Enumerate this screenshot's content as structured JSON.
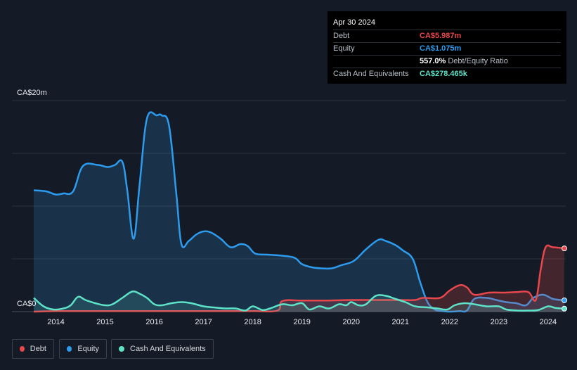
{
  "tooltip": {
    "date": "Apr 30 2024",
    "rows": [
      {
        "label": "Debt",
        "value": "CA$5.987m",
        "color": "#e8474c"
      },
      {
        "label": "Equity",
        "value": "CA$1.075m",
        "color": "#2d9bee"
      },
      {
        "label": "",
        "value": "557.0%",
        "note": "Debt/Equity Ratio",
        "color": "#ffffff"
      },
      {
        "label": "Cash And Equivalents",
        "value": "CA$278.465k",
        "color": "#5ee2c8"
      }
    ]
  },
  "legend": [
    {
      "label": "Debt",
      "color": "#e8474c"
    },
    {
      "label": "Equity",
      "color": "#2d9bee"
    },
    {
      "label": "Cash And Equivalents",
      "color": "#5ee2c8"
    }
  ],
  "chart_data": {
    "type": "area",
    "y_axis_labels": [
      "CA$20m",
      "CA$0"
    ],
    "ylim": [
      0,
      20
    ],
    "y_unit": "CA$m",
    "x_tick_labels": [
      "2014",
      "2015",
      "2016",
      "2017",
      "2018",
      "2019",
      "2020",
      "2021",
      "2022",
      "2023",
      "2024"
    ],
    "xlim": [
      2013.55,
      2024.33
    ],
    "grid": true,
    "legend_position": "bottom-left",
    "series": [
      {
        "name": "Equity",
        "color": "#2d9bee",
        "points": [
          [
            2013.55,
            11.5
          ],
          [
            2013.8,
            11.4
          ],
          [
            2014.0,
            11.1
          ],
          [
            2014.15,
            11.2
          ],
          [
            2014.35,
            11.4
          ],
          [
            2014.55,
            13.8
          ],
          [
            2014.85,
            13.9
          ],
          [
            2015.05,
            13.7
          ],
          [
            2015.2,
            13.9
          ],
          [
            2015.35,
            14.2
          ],
          [
            2015.45,
            11.5
          ],
          [
            2015.58,
            6.9
          ],
          [
            2015.7,
            12.0
          ],
          [
            2015.85,
            18.3
          ],
          [
            2016.05,
            18.6
          ],
          [
            2016.15,
            18.6
          ],
          [
            2016.3,
            17.6
          ],
          [
            2016.45,
            11.0
          ],
          [
            2016.55,
            6.4
          ],
          [
            2016.7,
            6.7
          ],
          [
            2016.85,
            7.3
          ],
          [
            2017.0,
            7.6
          ],
          [
            2017.15,
            7.5
          ],
          [
            2017.35,
            6.9
          ],
          [
            2017.55,
            6.1
          ],
          [
            2017.75,
            6.4
          ],
          [
            2017.9,
            6.2
          ],
          [
            2018.05,
            5.5
          ],
          [
            2018.3,
            5.4
          ],
          [
            2018.6,
            5.3
          ],
          [
            2018.85,
            5.1
          ],
          [
            2019.0,
            4.5
          ],
          [
            2019.2,
            4.2
          ],
          [
            2019.4,
            4.1
          ],
          [
            2019.6,
            4.1
          ],
          [
            2019.8,
            4.4
          ],
          [
            2020.05,
            4.8
          ],
          [
            2020.3,
            5.9
          ],
          [
            2020.55,
            6.8
          ],
          [
            2020.7,
            6.7
          ],
          [
            2020.9,
            6.3
          ],
          [
            2021.05,
            5.8
          ],
          [
            2021.25,
            5.0
          ],
          [
            2021.4,
            2.8
          ],
          [
            2021.55,
            0.9
          ],
          [
            2021.7,
            0.2
          ],
          [
            2021.85,
            0.05
          ],
          [
            2022.0,
            0.0
          ],
          [
            2022.2,
            0.05
          ],
          [
            2022.35,
            0.1
          ],
          [
            2022.5,
            1.2
          ],
          [
            2022.75,
            1.3
          ],
          [
            2022.95,
            1.1
          ],
          [
            2023.15,
            0.9
          ],
          [
            2023.35,
            0.8
          ],
          [
            2023.55,
            0.6
          ],
          [
            2023.7,
            1.3
          ],
          [
            2023.9,
            1.6
          ],
          [
            2024.1,
            1.2
          ],
          [
            2024.33,
            1.07
          ]
        ]
      },
      {
        "name": "Debt",
        "color": "#e8474c",
        "points": [
          [
            2013.55,
            0.0
          ],
          [
            2014.0,
            0.05
          ],
          [
            2014.5,
            0.05
          ],
          [
            2015.0,
            0.05
          ],
          [
            2016.0,
            0.05
          ],
          [
            2017.0,
            0.05
          ],
          [
            2018.0,
            0.05
          ],
          [
            2018.5,
            0.1
          ],
          [
            2018.6,
            1.0
          ],
          [
            2019.0,
            1.05
          ],
          [
            2019.5,
            1.05
          ],
          [
            2020.0,
            1.1
          ],
          [
            2020.5,
            1.1
          ],
          [
            2021.0,
            1.1
          ],
          [
            2021.3,
            1.1
          ],
          [
            2021.45,
            1.3
          ],
          [
            2021.8,
            1.3
          ],
          [
            2022.0,
            2.0
          ],
          [
            2022.2,
            2.5
          ],
          [
            2022.35,
            2.3
          ],
          [
            2022.5,
            1.6
          ],
          [
            2022.8,
            1.8
          ],
          [
            2023.1,
            1.8
          ],
          [
            2023.35,
            1.85
          ],
          [
            2023.6,
            1.85
          ],
          [
            2023.75,
            1.1
          ],
          [
            2023.85,
            4.0
          ],
          [
            2023.95,
            6.1
          ],
          [
            2024.1,
            6.1
          ],
          [
            2024.33,
            5.99
          ]
        ]
      },
      {
        "name": "Cash And Equivalents",
        "color": "#5ee2c8",
        "points": [
          [
            2013.55,
            1.3
          ],
          [
            2013.75,
            0.5
          ],
          [
            2013.95,
            0.2
          ],
          [
            2014.15,
            0.3
          ],
          [
            2014.3,
            0.6
          ],
          [
            2014.45,
            1.4
          ],
          [
            2014.6,
            1.1
          ],
          [
            2014.8,
            0.8
          ],
          [
            2015.0,
            0.6
          ],
          [
            2015.15,
            0.7
          ],
          [
            2015.35,
            1.3
          ],
          [
            2015.55,
            1.9
          ],
          [
            2015.7,
            1.7
          ],
          [
            2015.85,
            1.3
          ],
          [
            2016.0,
            0.7
          ],
          [
            2016.15,
            0.6
          ],
          [
            2016.35,
            0.8
          ],
          [
            2016.55,
            0.9
          ],
          [
            2016.75,
            0.8
          ],
          [
            2017.0,
            0.5
          ],
          [
            2017.2,
            0.4
          ],
          [
            2017.45,
            0.3
          ],
          [
            2017.65,
            0.3
          ],
          [
            2017.85,
            0.1
          ],
          [
            2018.0,
            0.5
          ],
          [
            2018.2,
            0.15
          ],
          [
            2018.35,
            0.3
          ],
          [
            2018.6,
            0.7
          ],
          [
            2018.8,
            0.6
          ],
          [
            2019.0,
            0.8
          ],
          [
            2019.15,
            0.2
          ],
          [
            2019.35,
            0.5
          ],
          [
            2019.55,
            0.3
          ],
          [
            2019.75,
            0.7
          ],
          [
            2019.9,
            0.6
          ],
          [
            2020.0,
            0.9
          ],
          [
            2020.15,
            0.6
          ],
          [
            2020.3,
            0.7
          ],
          [
            2020.5,
            1.5
          ],
          [
            2020.7,
            1.5
          ],
          [
            2020.9,
            1.2
          ],
          [
            2021.1,
            0.9
          ],
          [
            2021.3,
            0.5
          ],
          [
            2021.55,
            0.4
          ],
          [
            2021.75,
            0.3
          ],
          [
            2021.95,
            0.2
          ],
          [
            2022.1,
            0.6
          ],
          [
            2022.3,
            0.8
          ],
          [
            2022.5,
            0.7
          ],
          [
            2022.75,
            0.5
          ],
          [
            2023.0,
            0.5
          ],
          [
            2023.15,
            0.2
          ],
          [
            2023.4,
            0.1
          ],
          [
            2023.6,
            0.1
          ],
          [
            2023.8,
            0.15
          ],
          [
            2024.0,
            0.5
          ],
          [
            2024.15,
            0.35
          ],
          [
            2024.33,
            0.28
          ]
        ]
      }
    ]
  }
}
